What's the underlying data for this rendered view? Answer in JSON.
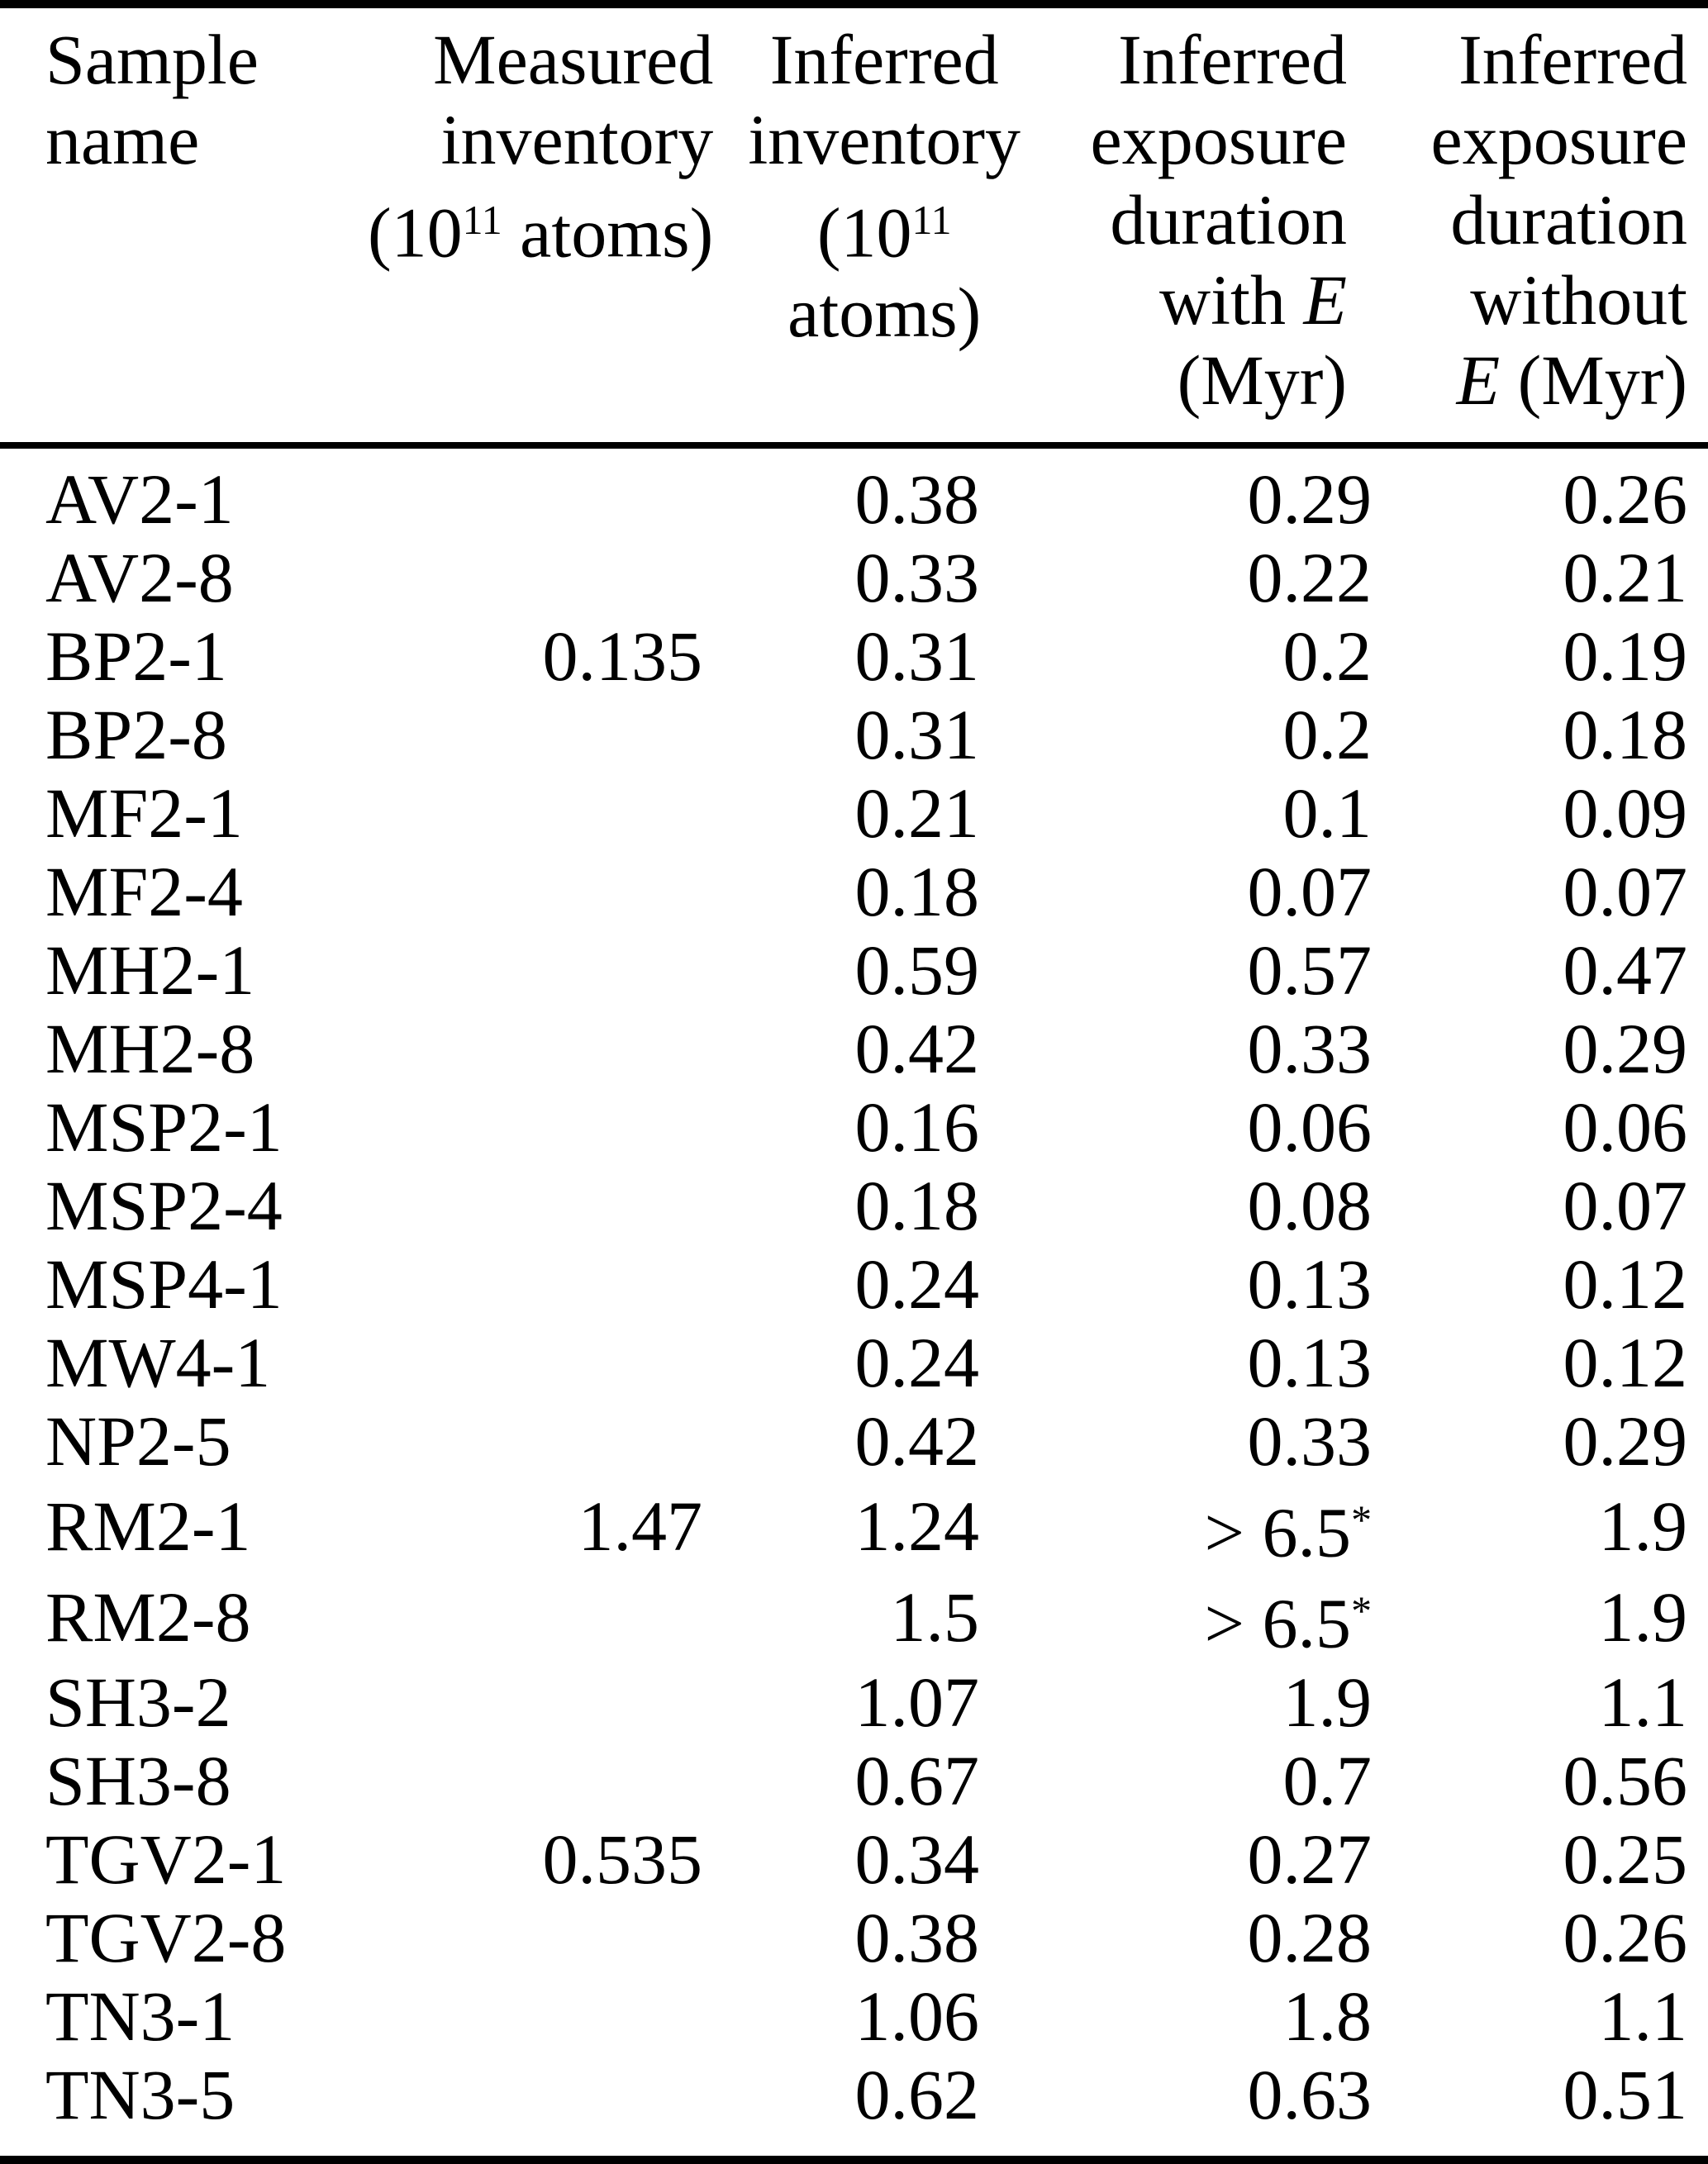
{
  "colors": {
    "background": "#ffffff",
    "text": "#000000",
    "rule": "#000000"
  },
  "table": {
    "header": {
      "columns": [
        {
          "name": "sample-name",
          "lines": [
            [
              {
                "t": "Sample"
              }
            ],
            [
              {
                "t": "name"
              }
            ]
          ]
        },
        {
          "name": "measured-inventory",
          "lines": [
            [
              {
                "t": "Measured"
              }
            ],
            [
              {
                "t": "inventory"
              }
            ],
            [
              {
                "t": "(10"
              },
              {
                "t": "11",
                "sup": true
              },
              {
                "t": " atoms)"
              }
            ]
          ]
        },
        {
          "name": "inferred-inventory",
          "lines": [
            [
              {
                "t": "Inferred"
              }
            ],
            [
              {
                "t": "inventory"
              }
            ],
            [
              {
                "t": "(10"
              },
              {
                "t": "11",
                "sup": true
              }
            ],
            [
              {
                "t": "atoms)"
              }
            ]
          ]
        },
        {
          "name": "inferred-exposure-duration-with-E",
          "lines": [
            [
              {
                "t": "Inferred"
              }
            ],
            [
              {
                "t": "exposure"
              }
            ],
            [
              {
                "t": "duration"
              }
            ],
            [
              {
                "t": "with "
              },
              {
                "t": "E",
                "italic": true
              }
            ],
            [
              {
                "t": "(Myr)"
              }
            ]
          ]
        },
        {
          "name": "inferred-exposure-duration-without-E",
          "lines": [
            [
              {
                "t": "Inferred"
              }
            ],
            [
              {
                "t": "exposure"
              }
            ],
            [
              {
                "t": "duration"
              }
            ],
            [
              {
                "t": "without"
              }
            ],
            [
              {
                "t": "E",
                "italic": true
              },
              {
                "t": " (Myr)"
              }
            ]
          ]
        }
      ]
    },
    "rows": [
      {
        "cells": [
          "AV2-1",
          "",
          "0.38",
          "0.29",
          "0.26"
        ]
      },
      {
        "cells": [
          "AV2-8",
          "",
          "0.33",
          "0.22",
          "0.21"
        ]
      },
      {
        "cells": [
          "BP2-1",
          "0.135",
          "0.31",
          "0.2",
          "0.19"
        ]
      },
      {
        "cells": [
          "BP2-8",
          "",
          "0.31",
          "0.2",
          "0.18"
        ]
      },
      {
        "cells": [
          "MF2-1",
          "",
          "0.21",
          "0.1",
          "0.09"
        ]
      },
      {
        "cells": [
          "MF2-4",
          "",
          "0.18",
          "0.07",
          "0.07"
        ]
      },
      {
        "cells": [
          "MH2-1",
          "",
          "0.59",
          "0.57",
          "0.47"
        ]
      },
      {
        "cells": [
          "MH2-8",
          "",
          "0.42",
          "0.33",
          "0.29"
        ]
      },
      {
        "cells": [
          "MSP2-1",
          "",
          "0.16",
          "0.06",
          "0.06"
        ]
      },
      {
        "cells": [
          "MSP2-4",
          "",
          "0.18",
          "0.08",
          "0.07"
        ]
      },
      {
        "cells": [
          "MSP4-1",
          "",
          "0.24",
          "0.13",
          "0.12"
        ]
      },
      {
        "cells": [
          "MW4-1",
          "",
          "0.24",
          "0.13",
          "0.12"
        ]
      },
      {
        "cells": [
          "NP2-5",
          "",
          "0.42",
          "0.33",
          "0.29"
        ]
      },
      {
        "cells": [
          "RM2-1",
          "1.47",
          "1.24",
          {
            "t": "> 6.5",
            "sup": "*"
          },
          "1.9"
        ]
      },
      {
        "cells": [
          "RM2-8",
          "",
          "1.5",
          {
            "t": "> 6.5",
            "sup": "*"
          },
          "1.9"
        ]
      },
      {
        "cells": [
          "SH3-2",
          "",
          "1.07",
          "1.9",
          "1.1"
        ]
      },
      {
        "cells": [
          "SH3-8",
          "",
          "0.67",
          "0.7",
          "0.56"
        ]
      },
      {
        "cells": [
          "TGV2-1",
          "0.535",
          "0.34",
          "0.27",
          "0.25"
        ]
      },
      {
        "cells": [
          "TGV2-8",
          "",
          "0.38",
          "0.28",
          "0.26"
        ]
      },
      {
        "cells": [
          "TN3-1",
          "",
          "1.06",
          "1.8",
          "1.1"
        ]
      },
      {
        "cells": [
          "TN3-5",
          "",
          "0.62",
          "0.63",
          "0.51"
        ]
      }
    ]
  }
}
